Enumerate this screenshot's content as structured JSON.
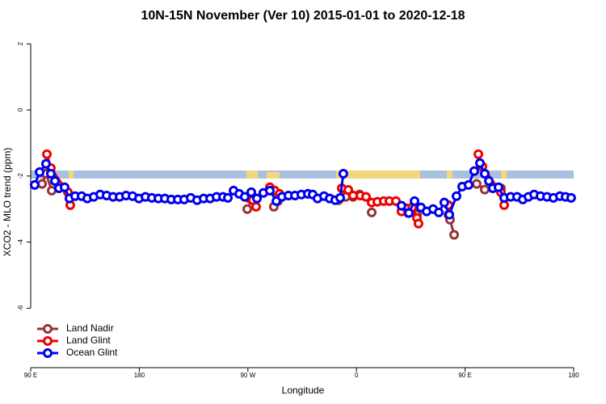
{
  "chart_data": {
    "type": "line",
    "title": "10N-15N November (Ver 10)   2015-01-01 to 2020-12-18",
    "x_label": "Longitude",
    "y_label": "XCO2 - MLO trend (ppm)",
    "xlim": [
      90,
      540
    ],
    "ylim": [
      -7.8,
      2.35
    ],
    "xticks": [
      {
        "value": 90,
        "label": "90 E"
      },
      180,
      {
        "value": 270,
        "label": "90 W"
      },
      {
        "value": 360,
        "label": "0"
      },
      {
        "value": 450,
        "label": "90 E"
      },
      {
        "value": 540,
        "label": "180"
      }
    ],
    "yticks": [
      2,
      0,
      -2,
      -4,
      -6
    ],
    "legend": "bottom-left",
    "series": [
      {
        "name": "Land Nadir",
        "color": "#993333",
        "x": [
          99.4,
          102.7,
          107.4,
          null,
          269.5,
          273.5,
          null,
          291.5,
          294.9,
          null,
          345.1,
          351.1,
          357.2,
          362.5,
          null,
          372.6,
          null,
          402.7,
          410.1,
          null,
          436.2,
          437.5,
          440.9,
          null,
          459.6,
          466.3,
          479.7
        ],
        "values": [
          -2.24,
          -1.93,
          -2.44,
          null,
          -3.0,
          -2.68,
          null,
          -2.93,
          -2.76,
          null,
          -2.73,
          -2.63,
          -2.63,
          -2.56,
          null,
          -3.1,
          null,
          -3.12,
          -3.17,
          null,
          -3.17,
          -3.32,
          -3.78,
          null,
          -2.24,
          -2.41,
          -2.37
        ]
      },
      {
        "name": "Land Glint",
        "color": "#ee0000",
        "x": [
          103.4,
          106.7,
          120.8,
          122.8,
          null,
          271.5,
          274.1,
          276.8,
          null,
          288.2,
          292.2,
          296.2,
          null,
          347.8,
          353.2,
          357.2,
          363.2,
          367.9,
          372.6,
          377.3,
          382.6,
          387.3,
          392.7,
          397.3,
          401.4,
          406.1,
          410.1,
          411.4,
          null,
          436.2,
          null,
          461.0,
          464.3,
          479.7,
          482.4
        ],
        "values": [
          -1.34,
          -1.76,
          -2.49,
          -2.88,
          null,
          -2.68,
          -2.73,
          -2.93,
          null,
          -2.34,
          -2.44,
          -2.54,
          null,
          -2.37,
          -2.42,
          -2.59,
          -2.59,
          -2.63,
          -2.8,
          -2.78,
          -2.76,
          -2.76,
          -2.76,
          -3.07,
          -2.98,
          -2.95,
          -3.27,
          -3.44,
          null,
          -2.88,
          null,
          -1.34,
          -1.71,
          -2.49,
          -2.88
        ]
      },
      {
        "name": "Ocean Glint",
        "color": "#0000ee",
        "x": [
          93.3,
          97.4,
          102.7,
          106.7,
          110.1,
          113.4,
          118.1,
          122.1,
          126.8,
          132.2,
          136.9,
          142.2,
          147.6,
          152.9,
          158.3,
          163.7,
          169.0,
          174.4,
          179.7,
          185.1,
          190.4,
          195.8,
          201.2,
          206.5,
          211.9,
          217.2,
          222.6,
          227.9,
          233.3,
          238.7,
          244.0,
          249.4,
          253.4,
          258.1,
          262.8,
          267.4,
          272.8,
          277.5,
          282.8,
          288.2,
          293.6,
          298.2,
          303.6,
          309.0,
          314.3,
          319.7,
          323.7,
          327.7,
          333.1,
          337.8,
          342.4,
          346.5,
          349.1,
          null,
          397.3,
          403.4,
          408.1,
          413.4,
          418.1,
          423.5,
          428.2,
          432.8,
          436.9,
          442.9,
          447.6,
          452.9,
          457.6,
          462.3,
          466.3,
          469.7,
          473.0,
          477.7,
          482.4,
          487.7,
          493.1,
          497.8,
          502.5,
          507.2,
          512.5,
          517.9,
          523.2,
          528.6,
          533.3,
          537.9
        ],
        "values": [
          -2.27,
          -1.88,
          -1.63,
          -1.93,
          -2.15,
          -2.37,
          -2.34,
          -2.68,
          -2.61,
          -2.61,
          -2.68,
          -2.63,
          -2.56,
          -2.59,
          -2.63,
          -2.63,
          -2.59,
          -2.61,
          -2.68,
          -2.63,
          -2.66,
          -2.68,
          -2.68,
          -2.71,
          -2.71,
          -2.71,
          -2.66,
          -2.73,
          -2.68,
          -2.68,
          -2.63,
          -2.63,
          -2.66,
          -2.44,
          -2.54,
          -2.63,
          -2.49,
          -2.68,
          -2.51,
          -2.44,
          -2.76,
          -2.63,
          -2.59,
          -2.59,
          -2.56,
          -2.54,
          -2.56,
          -2.68,
          -2.61,
          -2.68,
          -2.73,
          -2.66,
          -1.93,
          null,
          -2.9,
          -3.12,
          -2.76,
          -2.95,
          -3.07,
          -3.0,
          -3.1,
          -2.8,
          -3.17,
          -2.61,
          -2.32,
          -2.27,
          -1.85,
          -1.61,
          -1.93,
          -2.15,
          -2.37,
          -2.34,
          -2.66,
          -2.63,
          -2.63,
          -2.71,
          -2.63,
          -2.56,
          -2.61,
          -2.63,
          -2.66,
          -2.61,
          -2.63,
          -2.66
        ]
      }
    ]
  }
}
